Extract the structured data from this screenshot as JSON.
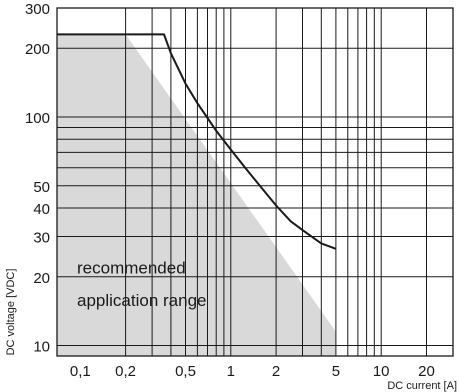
{
  "chart_data": {
    "type": "line",
    "title": "",
    "xlabel": "DC current [A]",
    "ylabel": "DC voltage [VDC]",
    "x_scale": "log",
    "y_scale": "log",
    "xlim": [
      0.07,
      30
    ],
    "ylim": [
      9,
      300
    ],
    "grid": true,
    "x_grid": [
      0.2,
      0.3,
      0.4,
      0.5,
      0.6,
      0.7,
      0.8,
      0.9,
      1,
      2,
      3,
      4,
      5,
      6,
      7,
      8,
      9,
      10,
      20
    ],
    "y_grid": [
      10,
      20,
      30,
      40,
      50,
      60,
      70,
      80,
      90,
      100,
      200
    ],
    "x_tick_labels": [
      {
        "value": 0.1,
        "label": "0,1"
      },
      {
        "value": 0.2,
        "label": "0,2"
      },
      {
        "value": 0.5,
        "label": "0,5"
      },
      {
        "value": 1,
        "label": "1"
      },
      {
        "value": 2,
        "label": "2"
      },
      {
        "value": 5,
        "label": "5"
      },
      {
        "value": 10,
        "label": "10"
      },
      {
        "value": 20,
        "label": "20"
      }
    ],
    "y_tick_labels": [
      {
        "value": 10,
        "label": "10"
      },
      {
        "value": 20,
        "label": "20"
      },
      {
        "value": 30,
        "label": "30"
      },
      {
        "value": 40,
        "label": "40"
      },
      {
        "value": 50,
        "label": "50"
      },
      {
        "value": 100,
        "label": "100"
      },
      {
        "value": 200,
        "label": "200"
      },
      {
        "value": 300,
        "label": "300"
      }
    ],
    "series": [
      {
        "type": "line",
        "x": [
          0.07,
          0.36,
          0.4,
          0.5,
          0.6,
          0.7,
          0.8,
          1.0,
          1.3,
          1.6,
          2.0,
          2.5,
          3.0,
          4.0,
          5.0
        ],
        "y": [
          230,
          230,
          190,
          140,
          115,
          99,
          87,
          72,
          58,
          49,
          41,
          35,
          32,
          28,
          26.5
        ]
      },
      {
        "type": "area",
        "fill": "#d9d9d9",
        "x": [
          0.07,
          0.2,
          5.0,
          5.0,
          0.07
        ],
        "y": [
          230,
          230,
          11.5,
          9,
          9
        ]
      }
    ],
    "annotations": [
      {
        "text": "recommended",
        "x": 0.095,
        "y": 22
      },
      {
        "text": "application range",
        "x": 0.095,
        "y": 15.8
      }
    ],
    "colors": {
      "curve": "#1a1a1a",
      "area": "#d9d9d9",
      "grid": "#1a1a1a"
    }
  }
}
